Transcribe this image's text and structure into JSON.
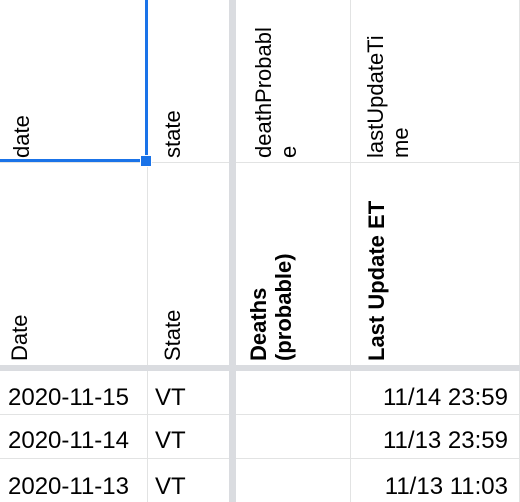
{
  "header_row1": {
    "col_a": "date",
    "col_b": "state",
    "col_c_line1": "deathProbabl",
    "col_c_line2": "e",
    "col_d_line1": "lastUpdateTi",
    "col_d_line2": "me"
  },
  "header_row2": {
    "col_a": "Date",
    "col_b": "State",
    "col_c_line1": "Deaths",
    "col_c_line2": "(probable)",
    "col_d": "Last Update ET"
  },
  "rows": [
    {
      "date": "2020-11-15",
      "state": "VT",
      "deaths_probable": "",
      "last_update": "11/14 23:59"
    },
    {
      "date": "2020-11-14",
      "state": "VT",
      "deaths_probable": "",
      "last_update": "11/13 23:59"
    },
    {
      "date": "2020-11-13",
      "state": "VT",
      "deaths_probable": "",
      "last_update": "11/13 11:03"
    }
  ],
  "colors": {
    "gridline": "#e2e3e3",
    "freeze_bar": "#dadce0",
    "selection": "#1a73e8"
  }
}
